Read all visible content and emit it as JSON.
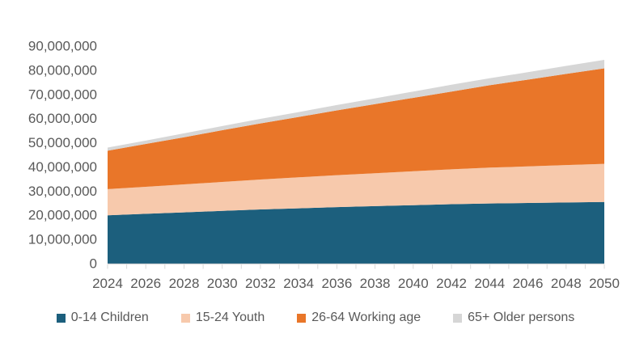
{
  "chart_data": {
    "type": "area",
    "stacked": true,
    "title": "",
    "xlabel": "",
    "ylabel": "",
    "grid": false,
    "legend_position": "bottom",
    "categories": [
      2024,
      2026,
      2028,
      2030,
      2032,
      2034,
      2036,
      2038,
      2040,
      2042,
      2044,
      2046,
      2048,
      2050
    ],
    "series": [
      {
        "name": "0-14 Children",
        "color": "#1C5F7D",
        "values": [
          20000000,
          20600000,
          21200000,
          21800000,
          22400000,
          22900000,
          23400000,
          23800000,
          24200000,
          24600000,
          24900000,
          25100000,
          25300000,
          25500000
        ]
      },
      {
        "name": "15-24 Youth",
        "color": "#F7C9AC",
        "values": [
          10800000,
          11200000,
          11600000,
          12000000,
          12400000,
          12800000,
          13200000,
          13600000,
          14000000,
          14400000,
          14800000,
          15100000,
          15500000,
          15800000
        ]
      },
      {
        "name": "26-64 Working age",
        "color": "#E97629",
        "values": [
          15900000,
          17700000,
          19500000,
          21400000,
          23200000,
          25000000,
          26800000,
          28600000,
          30400000,
          32200000,
          34100000,
          35900000,
          37700000,
          39500000
        ]
      },
      {
        "name": "65+ Older persons",
        "color": "#D6D6D6",
        "values": [
          1300000,
          1400000,
          1600000,
          1700000,
          1900000,
          2000000,
          2200000,
          2400000,
          2600000,
          2800000,
          2900000,
          3100000,
          3300000,
          3500000
        ]
      }
    ],
    "y_axis": {
      "min": 0,
      "max": 90000000,
      "tick_step": 10000000,
      "tick_labels": [
        "0",
        "10,000,000",
        "20,000,000",
        "30,000,000",
        "40,000,000",
        "50,000,000",
        "60,000,000",
        "70,000,000",
        "80,000,000",
        "90,000,000"
      ]
    },
    "x_axis": {
      "tick_labels": [
        "2024",
        "2026",
        "2028",
        "2030",
        "2032",
        "2034",
        "2036",
        "2038",
        "2040",
        "2042",
        "2044",
        "2046",
        "2048",
        "2050"
      ],
      "year_min": 2024,
      "year_max": 2050,
      "minor_tick_every": 1
    }
  },
  "colors": {
    "background": "#FFFFFF",
    "axis_line": "#D9D9D9",
    "axis_text": "#595959"
  }
}
